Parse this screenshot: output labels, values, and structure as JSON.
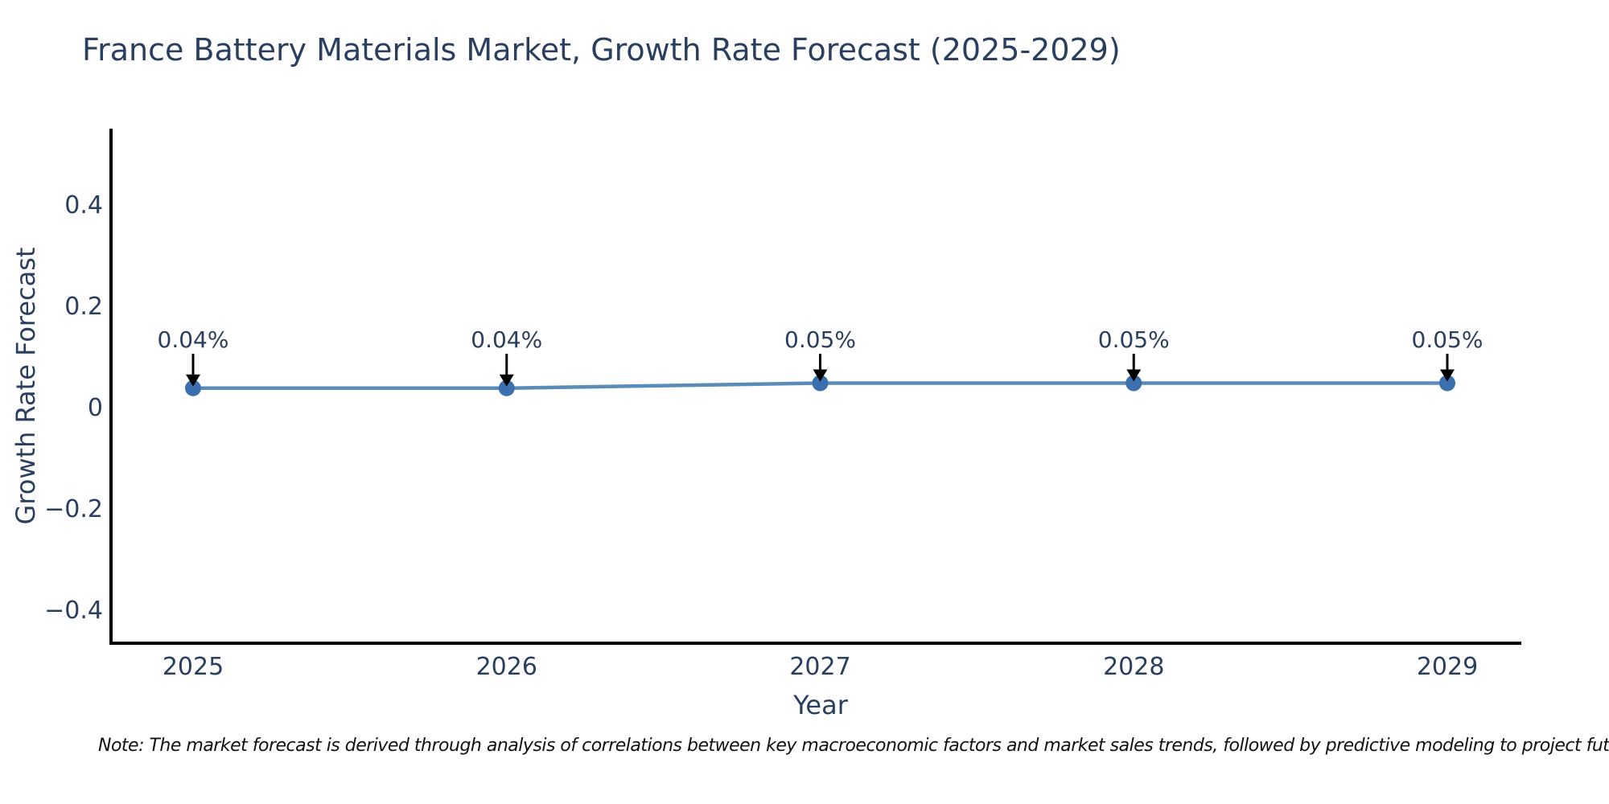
{
  "note": "Note: The market forecast is derived through analysis of correlations between key macroeconomic factors and market sales trends, followed by predictive modeling to project future sales",
  "chart_data": {
    "type": "line",
    "title": "France Battery Materials Market, Growth Rate Forecast (2025-2029)",
    "xlabel": "Year",
    "ylabel": "Growth Rate Forecast",
    "x": [
      2025,
      2026,
      2027,
      2028,
      2029
    ],
    "series": [
      {
        "name": "Growth Rate Forecast",
        "values": [
          0.04,
          0.04,
          0.05,
          0.05,
          0.05
        ]
      }
    ],
    "point_labels": [
      "0.04%",
      "0.04%",
      "0.05%",
      "0.05%",
      "0.05%"
    ],
    "xticks": [
      "2025",
      "2026",
      "2027",
      "2028",
      "2029"
    ],
    "yticks": [
      "0.4",
      "0.2",
      "0",
      "−0.2",
      "−0.4"
    ],
    "ylim": [
      -0.46,
      0.55
    ],
    "grid": false,
    "legend": "none",
    "colors": {
      "line": "#5a8cb9",
      "marker": "#3b6fae",
      "axis_line": "#000000",
      "text": "#2a3f5f",
      "arrow": "#000000",
      "background": "#ffffff"
    }
  }
}
